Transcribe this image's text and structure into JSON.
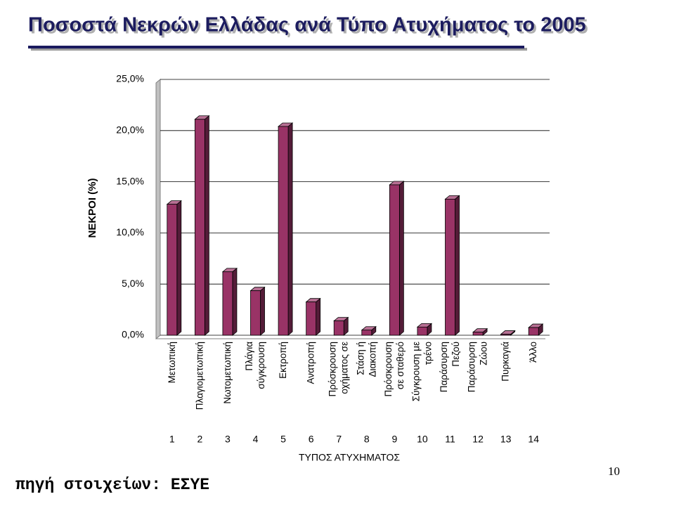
{
  "chart_data": {
    "type": "bar",
    "title": "Ποσοστά Νεκρών Ελλάδας ανά Τύπο Ατυχήματος το 2005",
    "y_label": "ΝΕΚΡΟΙ (%)",
    "x_label": "ΤΥΠΟΣ ΑΤΥΧΗΜΑΤΟΣ",
    "source": "πηγή στοιχείων: ΕΣΥΕ",
    "page_number": "10",
    "categories": [
      "Μετωπική",
      "Πλαγιομετωπική",
      "Νωτομετωπική",
      "Πλάγια σύγκρουση",
      "Εκτροπή",
      "Ανατροπή",
      "Πρόσκρουση οχήματος σε",
      "Στάση ή Διακοπή",
      "Πρόσκρουση σε σταθερό",
      "Σύγκρουση με τρένο",
      "Παράσυρση Πεζού",
      "Παράσυρση Ζώου",
      "Πυρκαγιά",
      "Άλλο"
    ],
    "category_numbers": [
      1,
      2,
      3,
      4,
      5,
      6,
      7,
      8,
      9,
      10,
      11,
      12,
      13,
      14
    ],
    "values": [
      12.8,
      21.1,
      6.2,
      4.35,
      20.4,
      3.25,
      1.4,
      0.5,
      14.7,
      0.8,
      13.3,
      0.3,
      0.1,
      0.75
    ],
    "color": "#993366",
    "ylim": [
      0,
      25
    ],
    "yticks": [
      {
        "value": 0,
        "label": "0,0%"
      },
      {
        "value": 5,
        "label": "5,0%"
      },
      {
        "value": 10,
        "label": "10,0%"
      },
      {
        "value": 15,
        "label": "15,0%"
      },
      {
        "value": 20,
        "label": "20,0%"
      },
      {
        "value": 25,
        "label": "25,0%"
      }
    ],
    "grid": true
  }
}
